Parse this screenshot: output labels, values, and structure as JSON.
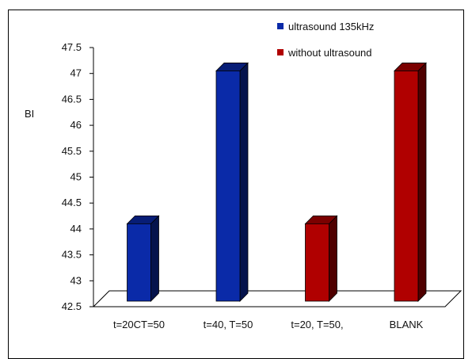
{
  "chart_data": {
    "type": "bar",
    "categories": [
      "t=20CT=50",
      "t=40, T=50",
      "t=20, T=50,",
      "BLANK"
    ],
    "series": [
      {
        "name": "ultrasound 135kHz",
        "color": "#0a2aa8",
        "values": [
          44.1,
          47.05,
          null,
          null
        ]
      },
      {
        "name": "without ultrasound",
        "color": "#b00000",
        "values": [
          null,
          null,
          44.1,
          47.05
        ]
      }
    ],
    "ylabel": "BI",
    "ylim": [
      42.5,
      47.5
    ],
    "yticks": [
      "42.5",
      "43",
      "43.5",
      "44",
      "44.5",
      "45",
      "45.5",
      "46",
      "46.5",
      "47",
      "47.5"
    ],
    "grid": false,
    "legend": "top-right"
  }
}
